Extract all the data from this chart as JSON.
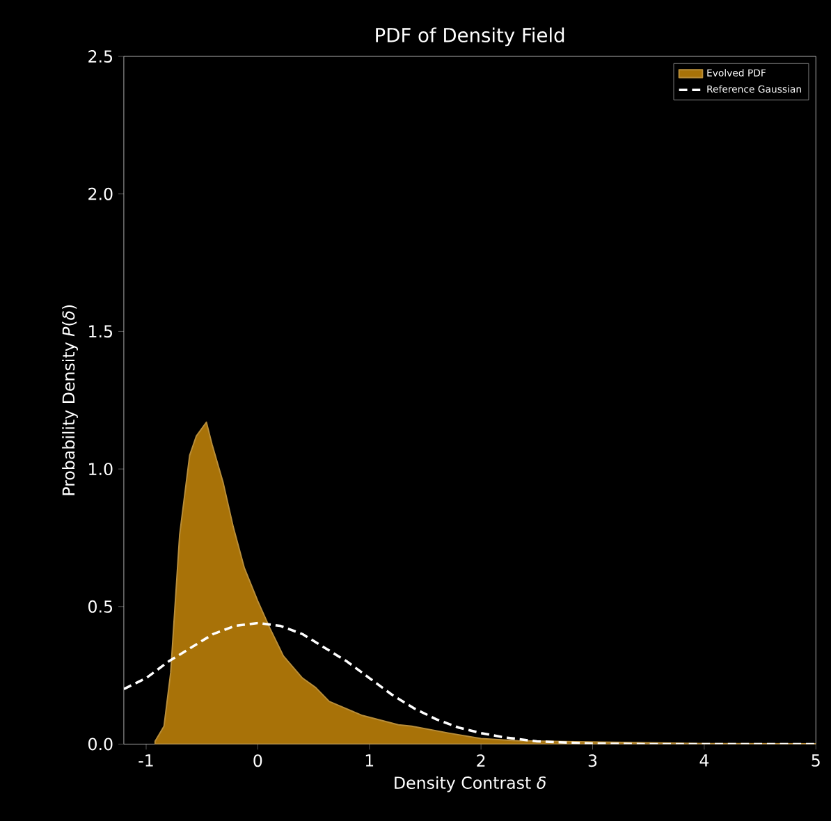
{
  "chart_data": {
    "type": "area",
    "title": "PDF of Density Field",
    "xlabel": "Density Contrast *δ*",
    "ylabel": "Probability Density *P*(*δ*)",
    "xlim": [
      -1.2,
      5
    ],
    "ylim": [
      0,
      2.5
    ],
    "xticks": [
      -1,
      0,
      1,
      2,
      3,
      4,
      5
    ],
    "yticks": [
      {
        "value": 0,
        "label": "0.0"
      },
      {
        "value": 0.5,
        "label": "0.5"
      },
      {
        "value": 1,
        "label": "1.0"
      },
      {
        "value": 1.5,
        "label": "1.5"
      },
      {
        "value": 2,
        "label": "2.0"
      },
      {
        "value": 2.5,
        "label": "2.5"
      }
    ],
    "legend": "top right",
    "grid": false,
    "series": [
      {
        "name": "Evolved PDF",
        "color": "#a87208",
        "x": [
          -0.92,
          -0.84,
          -0.78,
          -0.7,
          -0.61,
          -0.55,
          -0.46,
          -0.41,
          -0.31,
          -0.22,
          -0.12,
          0,
          0.11,
          0.23,
          0.4,
          0.52,
          0.64,
          0.93,
          1.26,
          1.38,
          1.71,
          2,
          2.33,
          2.95,
          4,
          5
        ],
        "values": [
          0.01,
          0.065,
          0.26,
          0.76,
          1.05,
          1.12,
          1.17,
          1.09,
          0.95,
          0.79,
          0.64,
          0.52,
          0.42,
          0.32,
          0.24,
          0.205,
          0.155,
          0.105,
          0.07,
          0.065,
          0.04,
          0.02,
          0.012,
          0.008,
          0.002,
          0.001
        ]
      },
      {
        "name": "Reference Gaussian",
        "type": "line",
        "line_style": "dashed",
        "color": "#ffffff",
        "x": [
          -1.2,
          -1,
          -0.8,
          -0.6,
          -0.4,
          -0.2,
          0,
          0.2,
          0.4,
          0.6,
          0.8,
          1,
          1.2,
          1.4,
          1.6,
          1.8,
          2,
          2.2,
          2.5,
          3,
          3.5,
          4,
          5
        ],
        "values": [
          0.2,
          0.24,
          0.3,
          0.35,
          0.4,
          0.43,
          0.44,
          0.43,
          0.4,
          0.35,
          0.3,
          0.24,
          0.18,
          0.13,
          0.09,
          0.06,
          0.04,
          0.025,
          0.01,
          0.002,
          0,
          0,
          0
        ]
      }
    ]
  }
}
